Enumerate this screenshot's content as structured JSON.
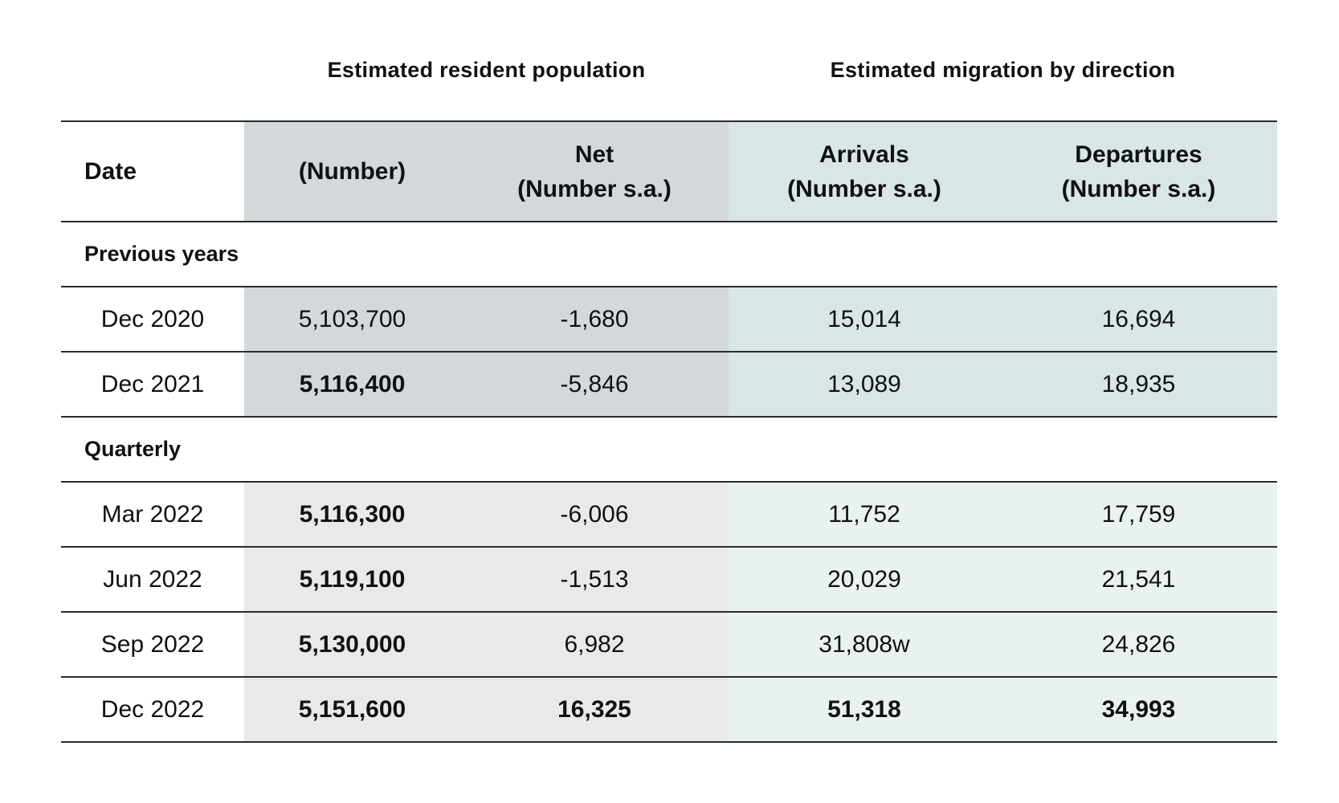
{
  "group_headers": {
    "population": "Estimated resident population",
    "migration": "Estimated migration by direction"
  },
  "columns": {
    "date": "Date",
    "number": "(Number)",
    "net_line1": "Net",
    "net_line2": "(Number s.a.)",
    "arrivals_line1": "Arrivals",
    "arrivals_line2": "(Number s.a.)",
    "departures_line1": "Departures",
    "departures_line2": "(Number s.a.)"
  },
  "sections": [
    {
      "label": "Previous years",
      "rows": [
        {
          "date": "Dec 2020",
          "number": "5,103,700",
          "net": "-1,680",
          "arrivals": "15,014",
          "departures": "16,694"
        },
        {
          "date": "Dec 2021",
          "number": "5,116,400",
          "net": "-5,846",
          "arrivals": "13,089",
          "departures": "18,935"
        }
      ]
    },
    {
      "label": "Quarterly",
      "rows": [
        {
          "date": "Mar 2022",
          "number": "5,116,300",
          "net": "-6,006",
          "arrivals": "11,752",
          "departures": "17,759"
        },
        {
          "date": "Jun 2022",
          "number": "5,119,100",
          "net": "-1,513",
          "arrivals": "20,029",
          "departures": "21,541"
        },
        {
          "date": "Sep 2022",
          "number": "5,130,000",
          "net": "6,982",
          "arrivals": "31,808w",
          "departures": "24,826"
        },
        {
          "date": "Dec 2022",
          "number": "5,151,600",
          "net": "16,325",
          "arrivals": "51,318",
          "departures": "34,993"
        }
      ]
    }
  ],
  "colors": {
    "population_header_bg": "#d3d8db",
    "migration_header_bg": "#d9e5e6",
    "population_quarterly_bg": "#e8e9eb",
    "migration_quarterly_bg": "#e9f1f1",
    "rule": "#2b2b2b"
  }
}
